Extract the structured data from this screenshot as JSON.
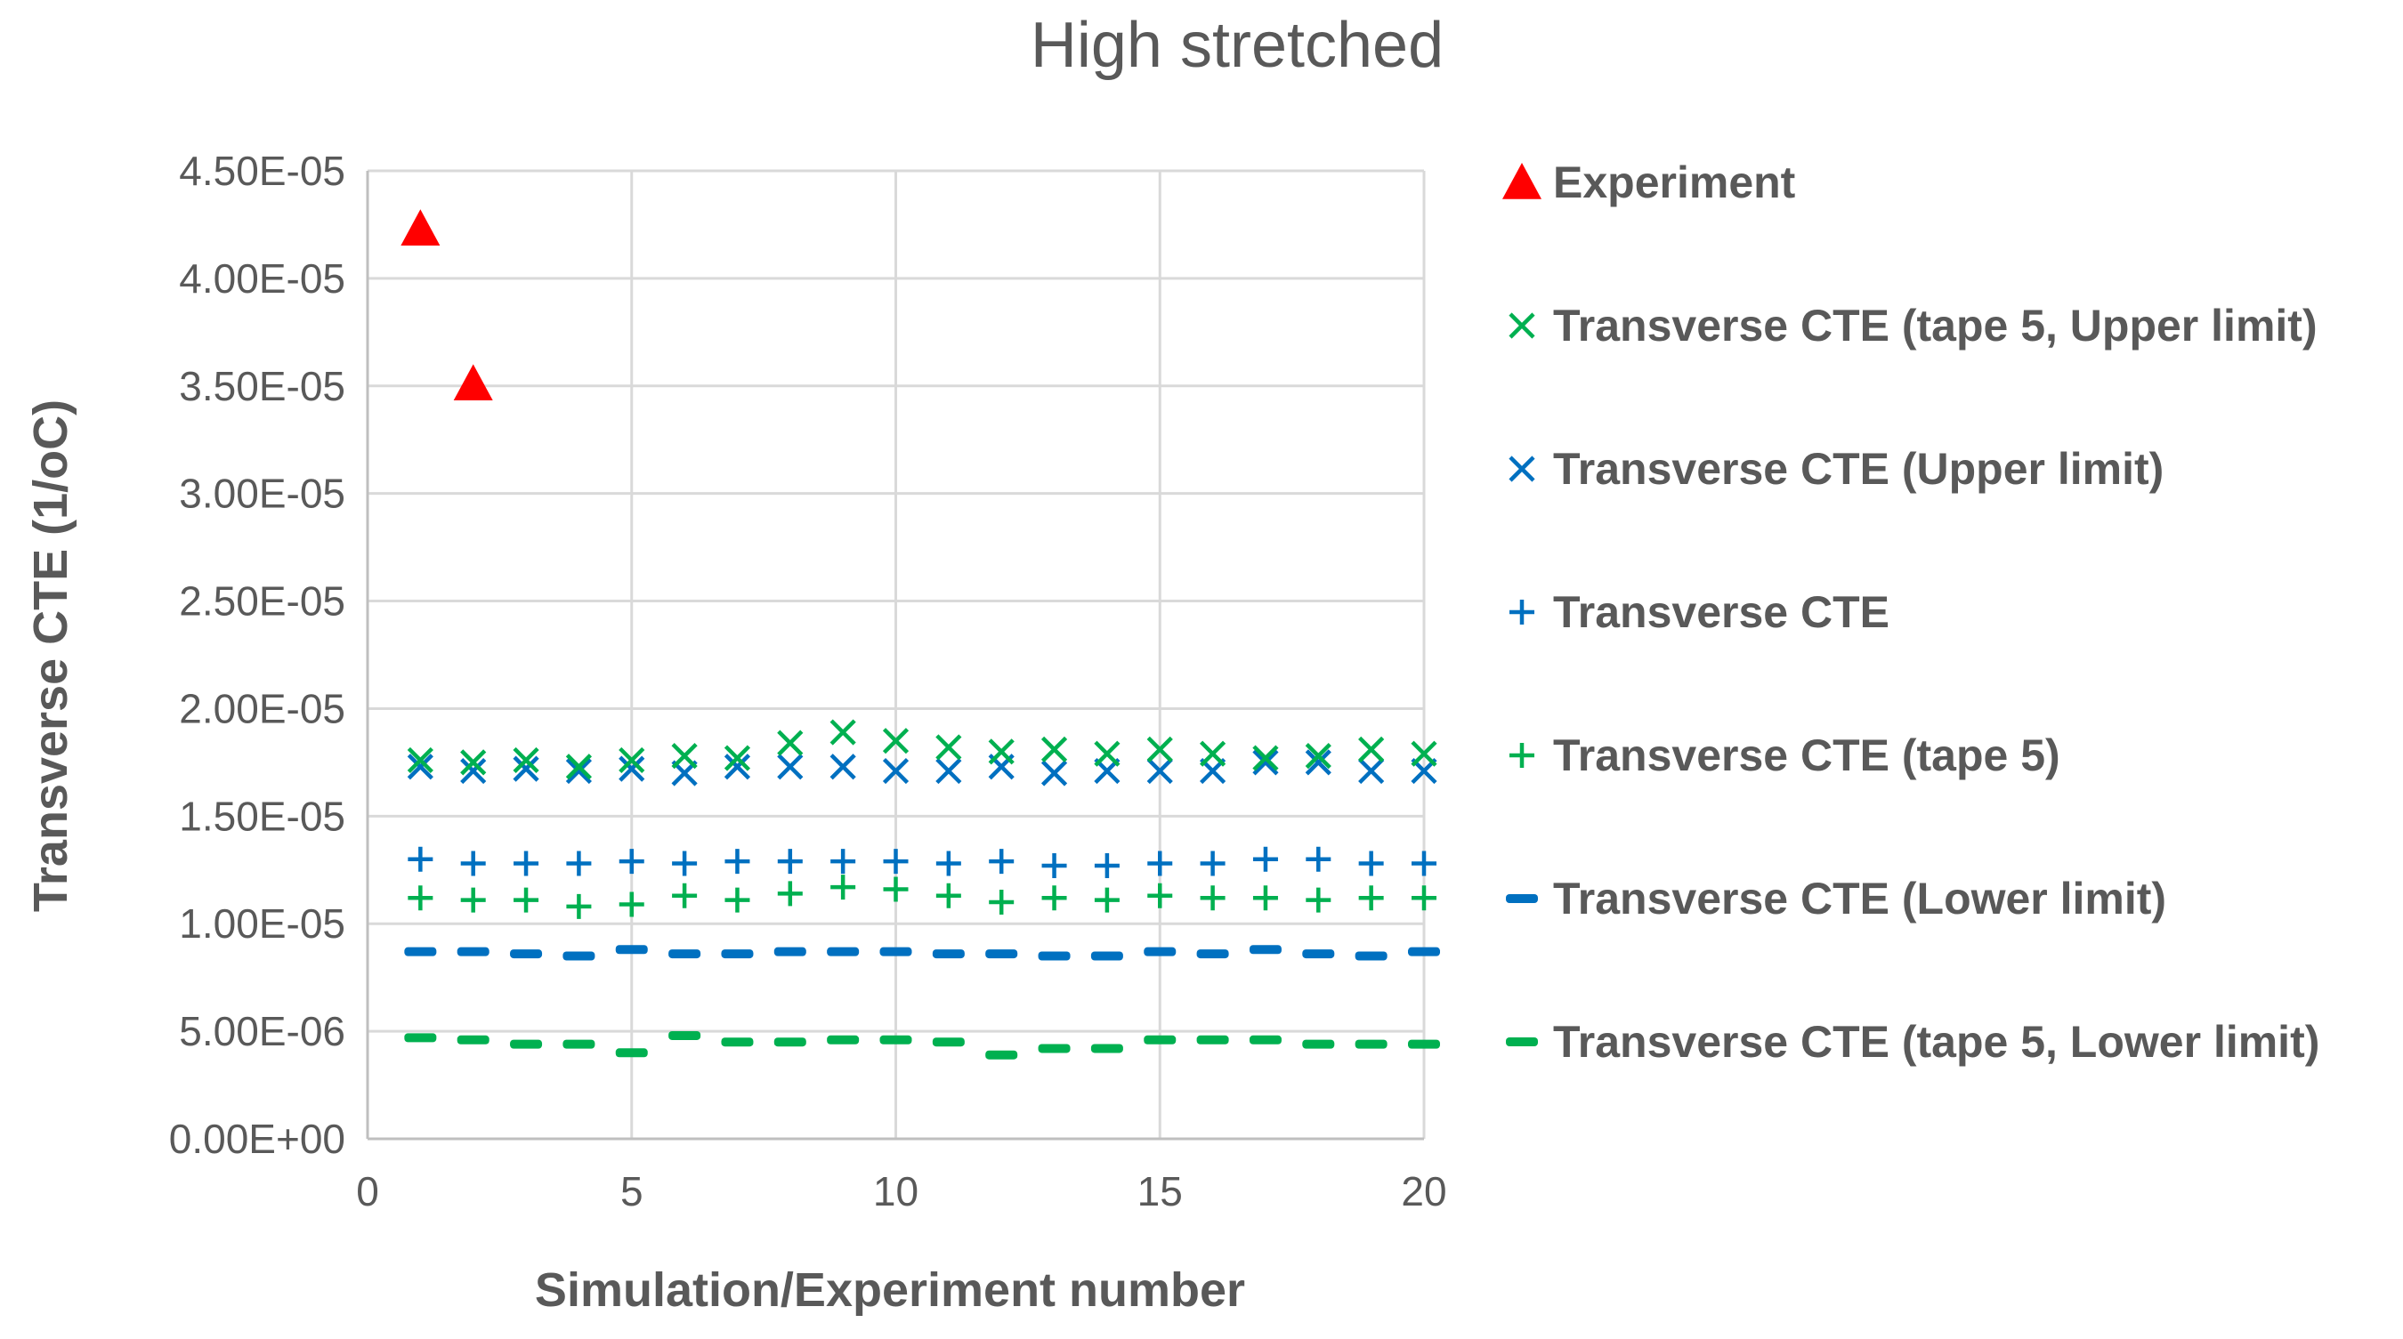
{
  "chart_data": {
    "type": "scatter",
    "title": "High stretched",
    "xlabel": "Simulation/Experiment number",
    "ylabel": "Transverse CTE (1/oC)",
    "xlim": [
      0,
      20
    ],
    "ylim": [
      0,
      4.5e-05
    ],
    "x_ticks": [
      "0",
      "5",
      "10",
      "15",
      "20"
    ],
    "y_ticks": [
      "0.00E+00",
      "5.00E-06",
      "1.00E-05",
      "1.50E-05",
      "2.00E-05",
      "2.50E-05",
      "3.00E-05",
      "3.50E-05",
      "4.00E-05",
      "4.50E-05"
    ],
    "grid": true,
    "legend_position": "right",
    "series": [
      {
        "name": "Experiment",
        "marker": "triangle",
        "color": "#ff0000",
        "x": [
          1,
          2
        ],
        "y": [
          4.23e-05,
          3.51e-05
        ]
      },
      {
        "name": "Transverse CTE (tape 5, Upper limit)",
        "marker": "x",
        "color": "#00b050",
        "x": [
          1,
          2,
          3,
          4,
          5,
          6,
          7,
          8,
          9,
          10,
          11,
          12,
          13,
          14,
          15,
          16,
          17,
          18,
          19,
          20
        ],
        "y": [
          1.76e-05,
          1.75e-05,
          1.76e-05,
          1.73e-05,
          1.76e-05,
          1.78e-05,
          1.77e-05,
          1.84e-05,
          1.89e-05,
          1.85e-05,
          1.82e-05,
          1.8e-05,
          1.81e-05,
          1.79e-05,
          1.81e-05,
          1.79e-05,
          1.77e-05,
          1.78e-05,
          1.81e-05,
          1.79e-05
        ]
      },
      {
        "name": "Transverse CTE (Upper limit)",
        "marker": "x",
        "color": "#0070c0",
        "x": [
          1,
          2,
          3,
          4,
          5,
          6,
          7,
          8,
          9,
          10,
          11,
          12,
          13,
          14,
          15,
          16,
          17,
          18,
          19,
          20
        ],
        "y": [
          1.73e-05,
          1.71e-05,
          1.72e-05,
          1.71e-05,
          1.72e-05,
          1.7e-05,
          1.73e-05,
          1.73e-05,
          1.73e-05,
          1.71e-05,
          1.71e-05,
          1.73e-05,
          1.7e-05,
          1.71e-05,
          1.71e-05,
          1.71e-05,
          1.75e-05,
          1.75e-05,
          1.71e-05,
          1.71e-05
        ]
      },
      {
        "name": "Transverse CTE",
        "marker": "plus",
        "color": "#0070c0",
        "x": [
          1,
          2,
          3,
          4,
          5,
          6,
          7,
          8,
          9,
          10,
          11,
          12,
          13,
          14,
          15,
          16,
          17,
          18,
          19,
          20
        ],
        "y": [
          1.3e-05,
          1.28e-05,
          1.28e-05,
          1.28e-05,
          1.29e-05,
          1.28e-05,
          1.29e-05,
          1.29e-05,
          1.29e-05,
          1.29e-05,
          1.28e-05,
          1.29e-05,
          1.27e-05,
          1.27e-05,
          1.28e-05,
          1.28e-05,
          1.3e-05,
          1.3e-05,
          1.28e-05,
          1.28e-05
        ]
      },
      {
        "name": "Transverse CTE (tape 5)",
        "marker": "plus",
        "color": "#00b050",
        "x": [
          1,
          2,
          3,
          4,
          5,
          6,
          7,
          8,
          9,
          10,
          11,
          12,
          13,
          14,
          15,
          16,
          17,
          18,
          19,
          20
        ],
        "y": [
          1.12e-05,
          1.11e-05,
          1.11e-05,
          1.08e-05,
          1.09e-05,
          1.13e-05,
          1.11e-05,
          1.14e-05,
          1.17e-05,
          1.16e-05,
          1.13e-05,
          1.1e-05,
          1.12e-05,
          1.11e-05,
          1.13e-05,
          1.12e-05,
          1.12e-05,
          1.11e-05,
          1.12e-05,
          1.12e-05
        ]
      },
      {
        "name": "Transverse CTE (Lower limit)",
        "marker": "dash",
        "color": "#0070c0",
        "x": [
          1,
          2,
          3,
          4,
          5,
          6,
          7,
          8,
          9,
          10,
          11,
          12,
          13,
          14,
          15,
          16,
          17,
          18,
          19,
          20
        ],
        "y": [
          8.7e-06,
          8.7e-06,
          8.6e-06,
          8.5e-06,
          8.8e-06,
          8.6e-06,
          8.6e-06,
          8.7e-06,
          8.7e-06,
          8.7e-06,
          8.6e-06,
          8.6e-06,
          8.5e-06,
          8.5e-06,
          8.7e-06,
          8.6e-06,
          8.8e-06,
          8.6e-06,
          8.5e-06,
          8.7e-06
        ]
      },
      {
        "name": "Transverse CTE (tape 5, Lower limit)",
        "marker": "dash",
        "color": "#00b050",
        "x": [
          1,
          2,
          3,
          4,
          5,
          6,
          7,
          8,
          9,
          10,
          11,
          12,
          13,
          14,
          15,
          16,
          17,
          18,
          19,
          20
        ],
        "y": [
          4.7e-06,
          4.6e-06,
          4.4e-06,
          4.4e-06,
          4e-06,
          4.8e-06,
          4.5e-06,
          4.5e-06,
          4.6e-06,
          4.6e-06,
          4.5e-06,
          3.9e-06,
          4.2e-06,
          4.2e-06,
          4.6e-06,
          4.6e-06,
          4.6e-06,
          4.4e-06,
          4.4e-06,
          4.4e-06
        ]
      }
    ]
  },
  "colors": {
    "grid": "#d9d9d9",
    "axis": "#bfbfbf",
    "text": "#595959"
  }
}
